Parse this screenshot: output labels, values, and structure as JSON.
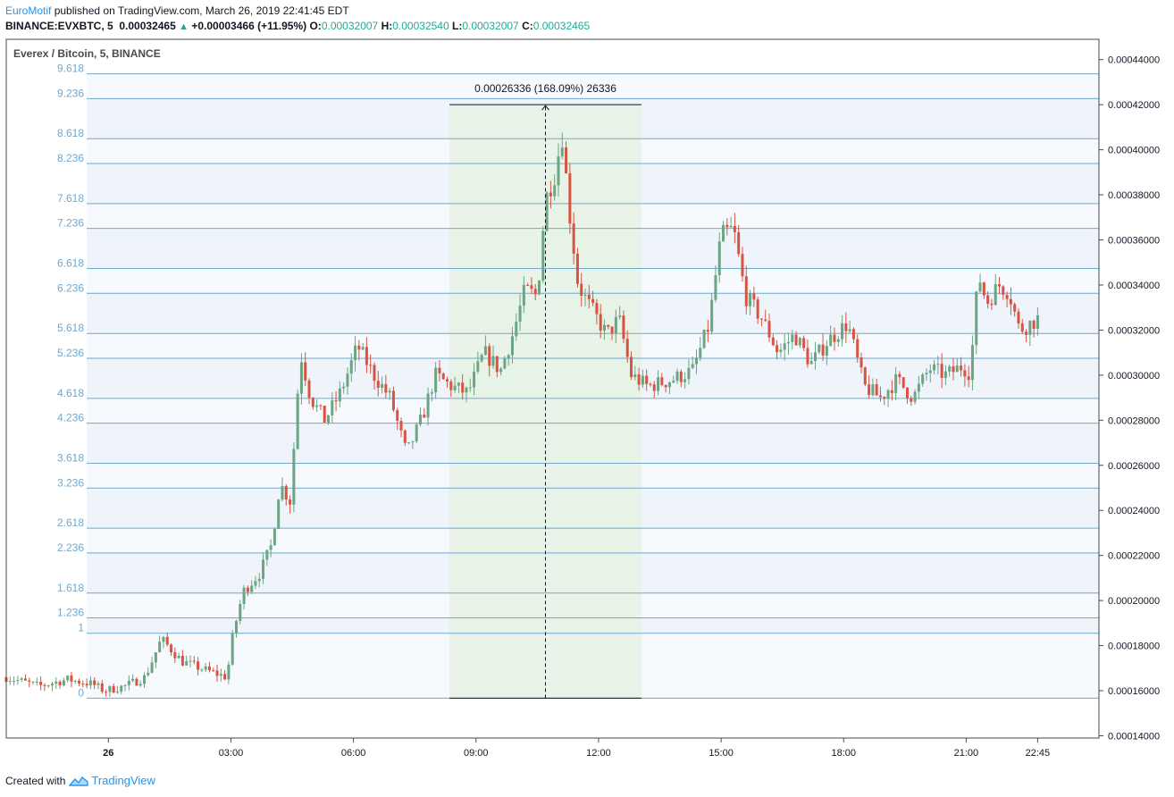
{
  "header": {
    "author": "EuroMotif",
    "published": " published on TradingView.com, March 26, 2019 22:41:45 EDT",
    "symbol": "BINANCE:EVXBTC, 5",
    "last": "0.00032465",
    "change": "+0.00003466 (+11.95%)",
    "o_label": "O:",
    "o_value": "0.00032007",
    "h_label": "H:",
    "h_value": "0.00032540",
    "l_label": "L:",
    "l_value": "0.00032007",
    "c_label": "C:",
    "c_value": "0.00032465"
  },
  "footer": {
    "created_with": "Created with",
    "brand": "TradingView"
  },
  "chart_data": {
    "type": "candlestick",
    "title": "Everex / Bitcoin, 5, BINANCE",
    "ylim": [
      0.000139,
      0.000449
    ],
    "y_ticks": [
      "0.00014000",
      "0.00016000",
      "0.00018000",
      "0.00020000",
      "0.00022000",
      "0.00024000",
      "0.00026000",
      "0.00028000",
      "0.00030000",
      "0.00032000",
      "0.00034000",
      "0.00036000",
      "0.00038000",
      "0.00040000",
      "0.00042000",
      "0.00044000"
    ],
    "x_ticks": [
      "26",
      "03:00",
      "06:00",
      "09:00",
      "12:00",
      "15:00",
      "18:00",
      "21:00",
      "22:45"
    ],
    "x_tick_hours": [
      0,
      3,
      6,
      9,
      12,
      15,
      18,
      21,
      22.75
    ],
    "x_range_hours": [
      -2.5,
      24.25
    ],
    "fib_base": 0.0001567,
    "fib_unit": 2.88e-05,
    "fib_levels": [
      0,
      1,
      1.236,
      1.618,
      2.236,
      2.618,
      3.236,
      3.618,
      4.236,
      4.618,
      5.236,
      5.618,
      6.236,
      6.618,
      7.236,
      7.618,
      8.236,
      8.618,
      9.236,
      9.618
    ],
    "fib_labels": [
      "0",
      "1",
      "1.236",
      "1.618",
      "2.236",
      "2.618",
      "3.236",
      "3.618",
      "4.236",
      "4.618",
      "5.236",
      "5.618",
      "6.236",
      "6.618",
      "7.236",
      "7.618",
      "8.236",
      "8.618",
      "9.236",
      "9.618"
    ],
    "measure": {
      "start_hour": 8.35,
      "end_hour": 13.05,
      "low": 0.0001567,
      "high": 0.00042,
      "label": "0.00026336 (168.09%) 26336"
    },
    "colors": {
      "up": "#6ba583",
      "down": "#d75442",
      "fib_line": "#6fa8cf",
      "fib_text": "#6fa8cf",
      "measure_fill": "#e6f2e3"
    },
    "price_path": [
      [
        -2.5,
        0.000166
      ],
      [
        -1.7,
        0.000162
      ],
      [
        -1.0,
        0.000165
      ],
      [
        -0.4,
        0.000163
      ],
      [
        -0.1,
        0.00016
      ],
      [
        0.4,
        0.000162
      ],
      [
        0.9,
        0.000166
      ],
      [
        1.3,
        0.000183
      ],
      [
        1.8,
        0.000173
      ],
      [
        2.4,
        0.000169
      ],
      [
        2.9,
        0.000166
      ],
      [
        3.05,
        0.000185
      ],
      [
        3.3,
        0.000204
      ],
      [
        3.7,
        0.000212
      ],
      [
        4.0,
        0.000225
      ],
      [
        4.2,
        0.000252
      ],
      [
        4.45,
        0.000244
      ],
      [
        4.7,
        0.00031
      ],
      [
        4.95,
        0.00029
      ],
      [
        5.3,
        0.00028
      ],
      [
        5.7,
        0.000293
      ],
      [
        6.1,
        0.000313
      ],
      [
        6.5,
        0.0003
      ],
      [
        6.9,
        0.00029
      ],
      [
        7.3,
        0.000265
      ],
      [
        7.7,
        0.000282
      ],
      [
        8.0,
        0.0003
      ],
      [
        8.4,
        0.000295
      ],
      [
        8.8,
        0.000292
      ],
      [
        9.2,
        0.00031
      ],
      [
        9.6,
        0.000302
      ],
      [
        9.9,
        0.000318
      ],
      [
        10.2,
        0.000338
      ],
      [
        10.5,
        0.000335
      ],
      [
        10.7,
        0.000378
      ],
      [
        10.95,
        0.00039
      ],
      [
        11.1,
        0.000408
      ],
      [
        11.3,
        0.00037
      ],
      [
        11.5,
        0.00034
      ],
      [
        11.8,
        0.00033
      ],
      [
        12.2,
        0.000318
      ],
      [
        12.5,
        0.000325
      ],
      [
        12.8,
        0.0003
      ],
      [
        13.2,
        0.000295
      ],
      [
        13.8,
        0.000298
      ],
      [
        14.3,
        0.000302
      ],
      [
        14.7,
        0.000322
      ],
      [
        15.0,
        0.000362
      ],
      [
        15.3,
        0.000365
      ],
      [
        15.6,
        0.000335
      ],
      [
        16.0,
        0.000325
      ],
      [
        16.4,
        0.00031
      ],
      [
        16.8,
        0.000318
      ],
      [
        17.2,
        0.000305
      ],
      [
        17.6,
        0.000315
      ],
      [
        18.1,
        0.000323
      ],
      [
        18.5,
        0.000295
      ],
      [
        18.9,
        0.00029
      ],
      [
        19.3,
        0.000298
      ],
      [
        19.7,
        0.00029
      ],
      [
        20.1,
        0.000303
      ],
      [
        20.5,
        0.0003
      ],
      [
        20.9,
        0.000304
      ],
      [
        21.1,
        0.000301
      ],
      [
        21.3,
        0.000345
      ],
      [
        21.5,
        0.000332
      ],
      [
        21.8,
        0.00034
      ],
      [
        22.05,
        0.000337
      ],
      [
        22.3,
        0.00032
      ],
      [
        22.75,
        0.000325
      ]
    ],
    "candle_count": 270
  }
}
